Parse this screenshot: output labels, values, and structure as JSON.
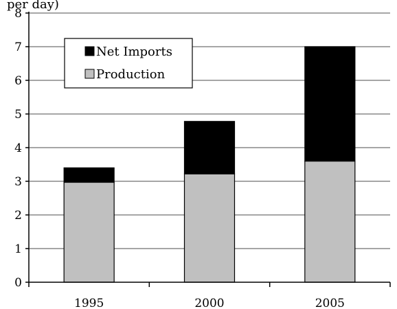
{
  "chart_data": {
    "type": "bar",
    "stacked": true,
    "ylabel": "per day)",
    "categories": [
      "1995",
      "2000",
      "2005"
    ],
    "series": [
      {
        "name": "Production",
        "values": [
          2.97,
          3.22,
          3.6
        ],
        "color": "#c0c0c0"
      },
      {
        "name": "Net Imports",
        "values": [
          0.43,
          1.56,
          3.4
        ],
        "color": "#000000"
      }
    ],
    "ylim": [
      0,
      8
    ],
    "yticks": [
      "0",
      "1",
      "2",
      "3",
      "4",
      "5",
      "6",
      "7",
      "8"
    ],
    "grid": true,
    "legend": {
      "position": "top-left",
      "order": [
        "Net Imports",
        "Production"
      ]
    }
  }
}
